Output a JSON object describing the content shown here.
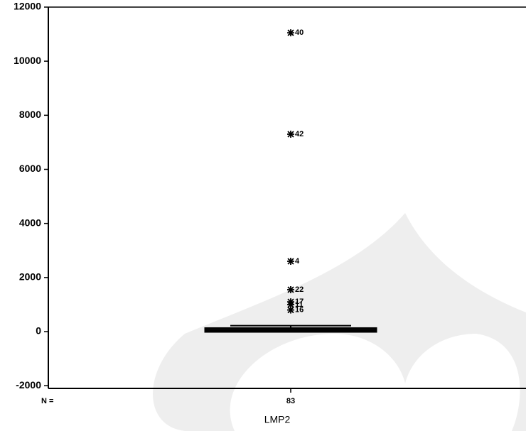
{
  "chart_data": {
    "type": "boxplot",
    "categories": [
      "LMP2"
    ],
    "n_label": "N =",
    "n": [
      83
    ],
    "box": {
      "whisker_low": 0,
      "q1": 0,
      "median": 40,
      "q3": 120,
      "whisker_high": 220
    },
    "outliers": {
      "values": [
        11050,
        7300,
        2600,
        1550,
        1100,
        1000,
        800
      ],
      "labels": [
        "40",
        "42",
        "4",
        "22",
        "17",
        "11",
        "16"
      ]
    },
    "ylim": [
      -2100,
      12000
    ],
    "yticks": [
      -2000,
      0,
      2000,
      4000,
      6000,
      8000,
      10000,
      12000
    ],
    "color": "#000000"
  }
}
